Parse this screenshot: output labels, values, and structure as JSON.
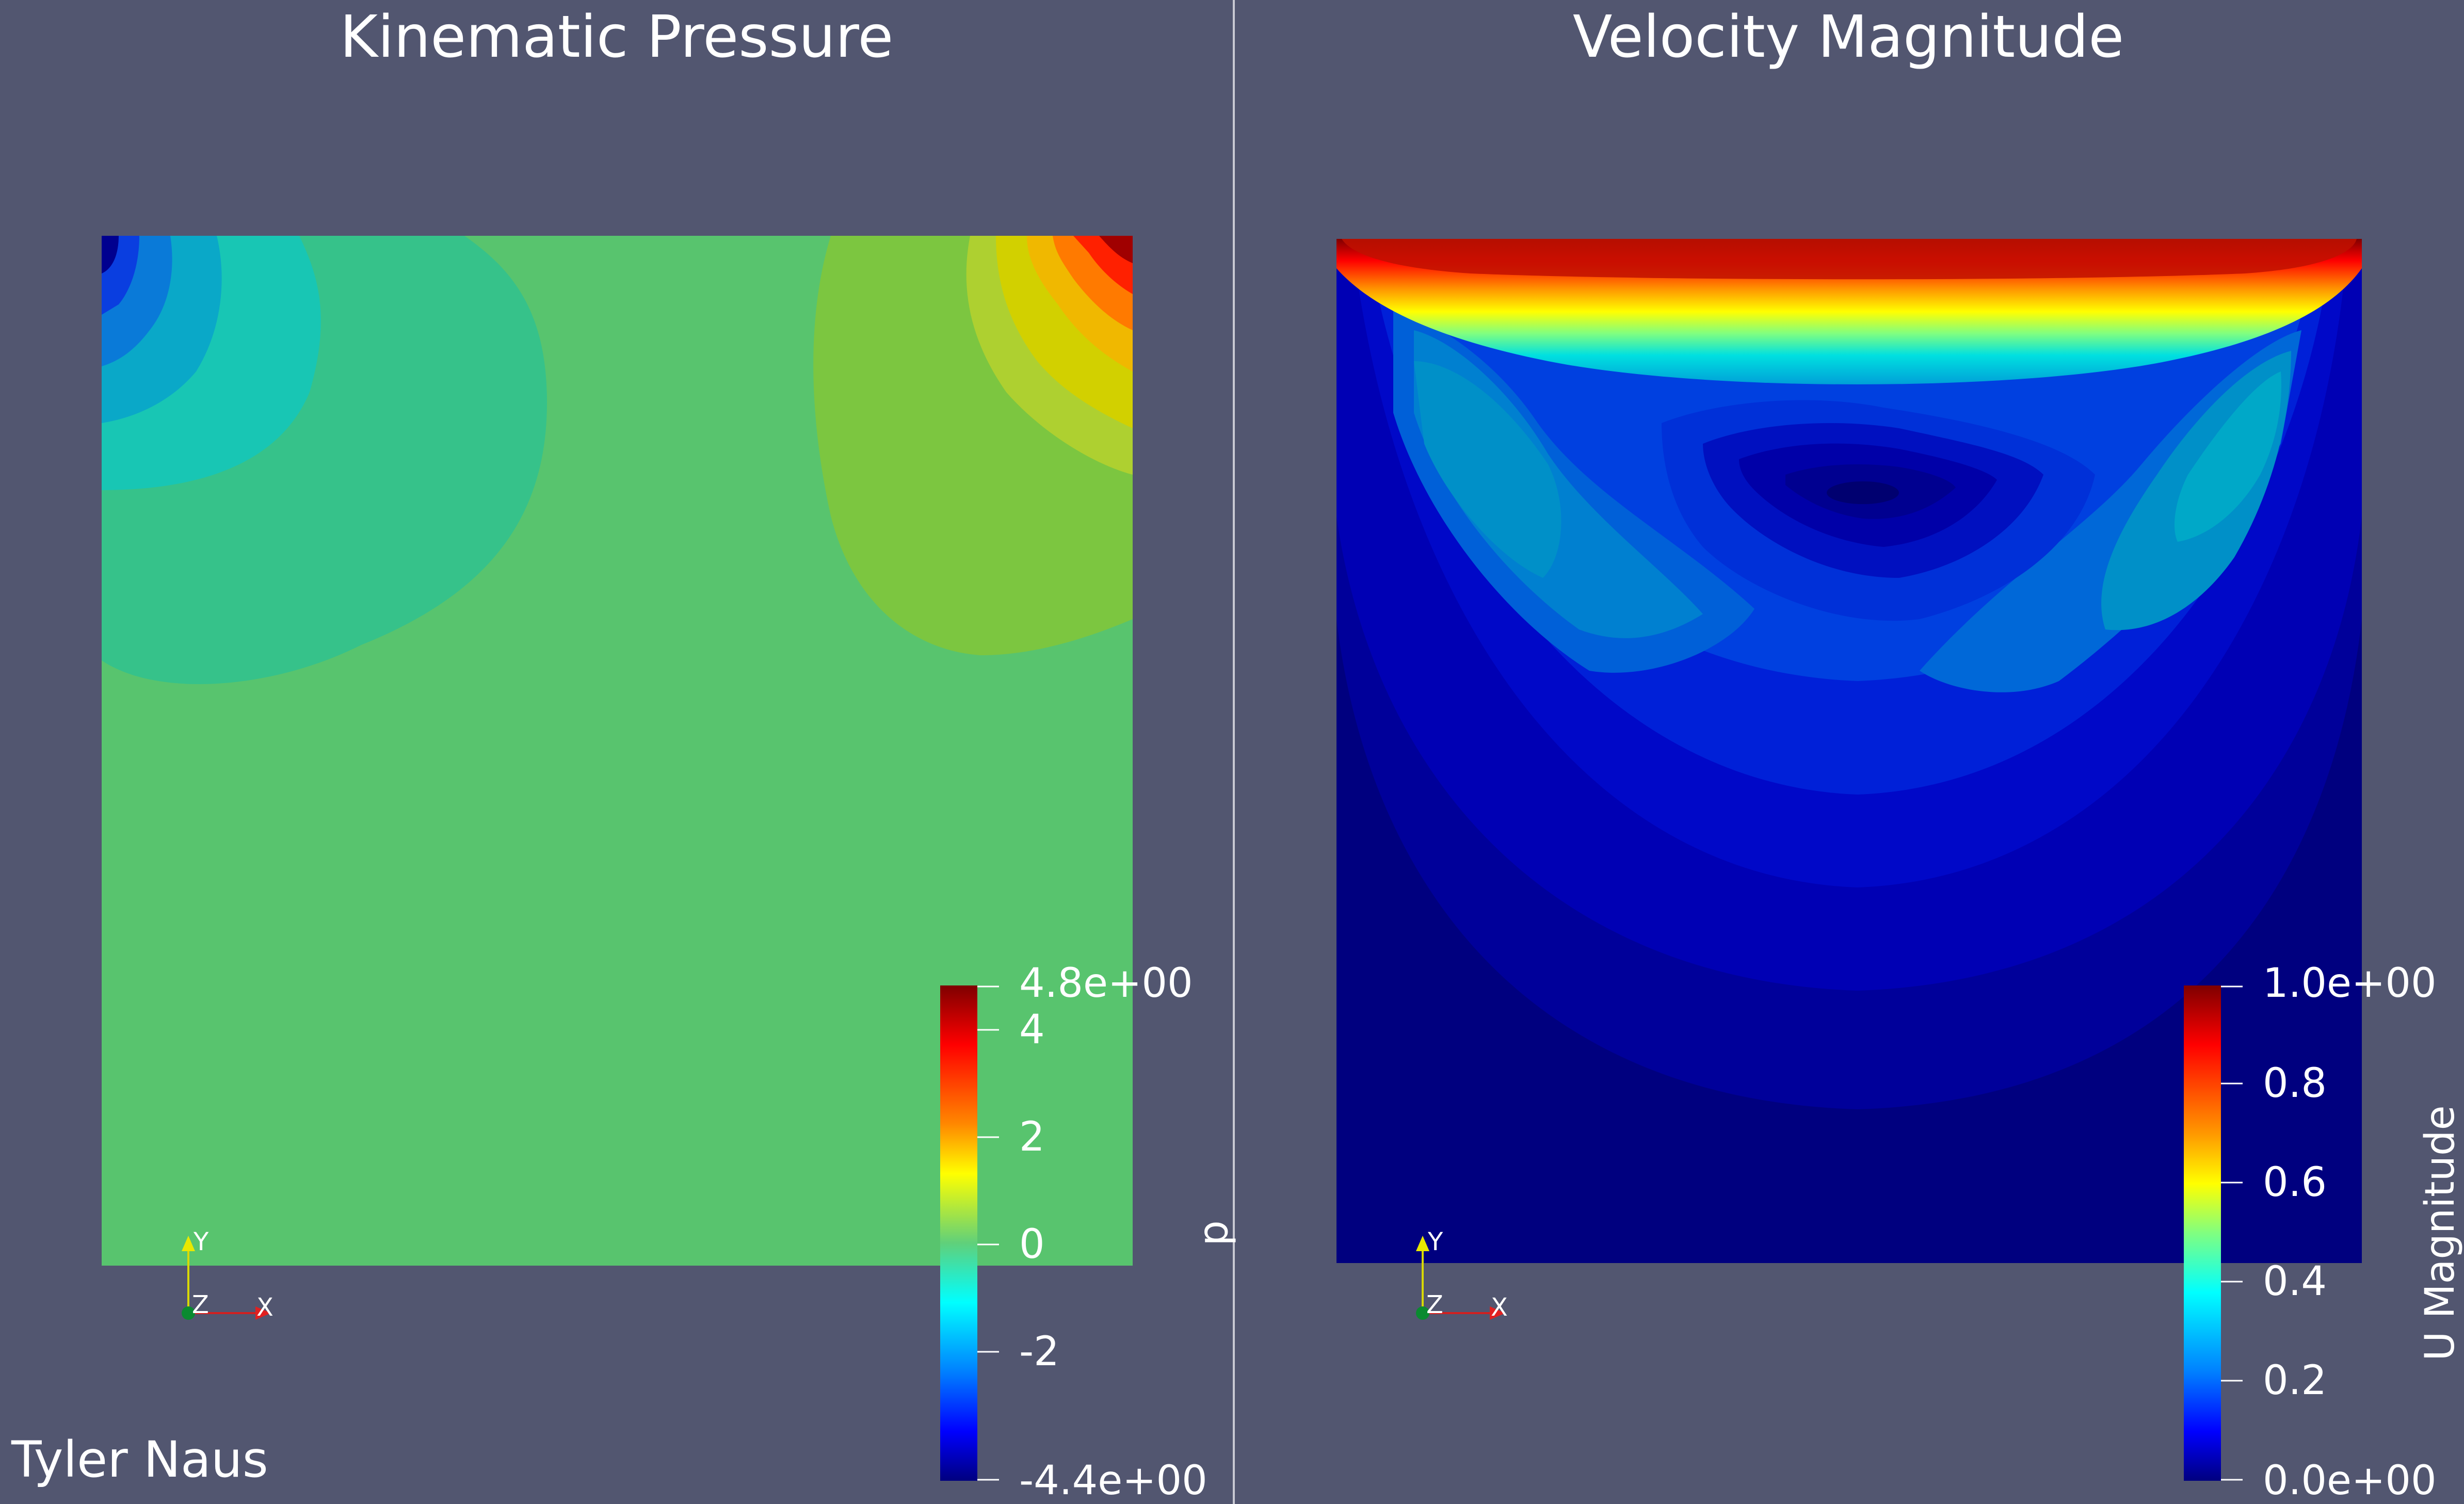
{
  "left_view": {
    "title": "Kinematic Pressure",
    "colorbar": {
      "label": "p",
      "tick_labels": [
        "4.8e+00",
        "4",
        "2",
        "0",
        "-2",
        "-4.4e+00"
      ],
      "tick_values": [
        4.8,
        4,
        2,
        0,
        -2,
        -4.4
      ],
      "range": [
        -4.4,
        4.8
      ]
    },
    "axes": {
      "y": "Y",
      "z": "Z",
      "x": "X"
    }
  },
  "right_view": {
    "title": "Velocity Magnitude",
    "colorbar": {
      "label": "U Magnitude",
      "tick_labels": [
        "1.0e+00",
        "0.8",
        "0.6",
        "0.4",
        "0.2",
        "0.0e+00"
      ],
      "tick_values": [
        1.0,
        0.8,
        0.6,
        0.4,
        0.2,
        0.0
      ],
      "range": [
        0.0,
        1.0
      ]
    },
    "axes": {
      "y": "Y",
      "z": "Z",
      "x": "X"
    }
  },
  "credit": "Tyler Naus",
  "colors": {
    "background": "#525670",
    "divider": "#c8c8d2",
    "jet_dark_blue": "#00007f",
    "jet_red": "#7f0000"
  }
}
